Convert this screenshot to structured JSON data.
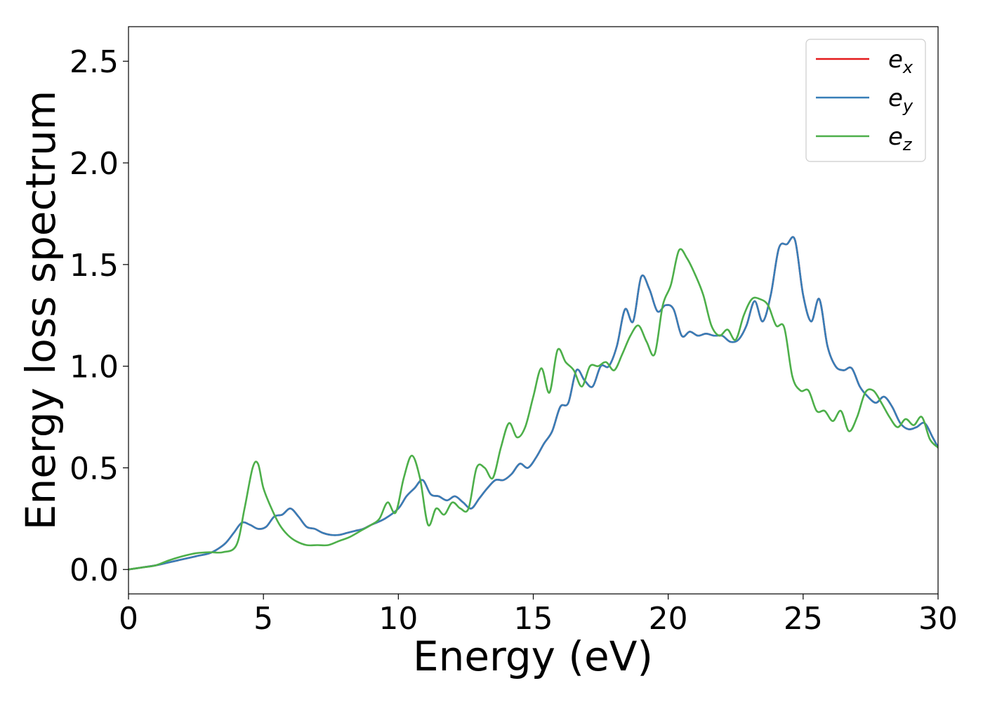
{
  "chart_data": {
    "type": "line",
    "xlabel": "Energy (eV)",
    "ylabel": "Energy loss spectrum",
    "xlim": [
      0,
      30
    ],
    "ylim": [
      -0.12,
      2.67
    ],
    "xticks": [
      0,
      5,
      10,
      15,
      20,
      25,
      30
    ],
    "xtick_labels": [
      "0",
      "5",
      "10",
      "15",
      "20",
      "25",
      "30"
    ],
    "yticks": [
      0.0,
      0.5,
      1.0,
      1.5,
      2.0,
      2.5
    ],
    "ytick_labels": [
      "0.0",
      "0.5",
      "1.0",
      "1.5",
      "2.0",
      "2.5"
    ],
    "grid": false,
    "legend_position": "top-right",
    "series": [
      {
        "name": "e",
        "subscript": "x",
        "color": "#e41a1c",
        "x": [
          0,
          0.5,
          1.0,
          1.5,
          2.0,
          2.5,
          3.0,
          3.3,
          3.6,
          3.9,
          4.2,
          4.5,
          4.8,
          5.1,
          5.4,
          5.7,
          6.0,
          6.3,
          6.6,
          6.9,
          7.2,
          7.5,
          7.8,
          8.1,
          8.4,
          8.7,
          9.0,
          9.5,
          10.0,
          10.3,
          10.6,
          10.9,
          11.2,
          11.5,
          11.8,
          12.1,
          12.4,
          12.7,
          13.0,
          13.3,
          13.6,
          13.9,
          14.2,
          14.5,
          14.8,
          15.1,
          15.4,
          15.7,
          16.0,
          16.3,
          16.6,
          16.9,
          17.2,
          17.5,
          17.8,
          18.1,
          18.4,
          18.7,
          19.0,
          19.3,
          19.6,
          19.9,
          20.2,
          20.5,
          20.8,
          21.1,
          21.4,
          21.7,
          22.0,
          22.3,
          22.6,
          22.9,
          23.2,
          23.5,
          23.8,
          24.1,
          24.4,
          24.7,
          25.0,
          25.3,
          25.6,
          25.9,
          26.2,
          26.5,
          26.8,
          27.1,
          27.4,
          27.7,
          28.0,
          28.3,
          28.6,
          28.9,
          29.2,
          29.5,
          29.8,
          30.0
        ],
        "y": [
          0,
          0.01,
          0.02,
          0.035,
          0.05,
          0.065,
          0.08,
          0.1,
          0.13,
          0.18,
          0.23,
          0.22,
          0.2,
          0.21,
          0.26,
          0.27,
          0.3,
          0.26,
          0.21,
          0.2,
          0.18,
          0.17,
          0.17,
          0.18,
          0.19,
          0.2,
          0.22,
          0.25,
          0.3,
          0.36,
          0.4,
          0.44,
          0.37,
          0.36,
          0.34,
          0.36,
          0.33,
          0.3,
          0.35,
          0.4,
          0.44,
          0.44,
          0.47,
          0.52,
          0.5,
          0.55,
          0.62,
          0.68,
          0.8,
          0.82,
          0.98,
          0.93,
          0.9,
          1.0,
          1.0,
          1.1,
          1.28,
          1.22,
          1.44,
          1.38,
          1.27,
          1.3,
          1.28,
          1.15,
          1.17,
          1.15,
          1.16,
          1.15,
          1.15,
          1.12,
          1.13,
          1.2,
          1.32,
          1.22,
          1.35,
          1.58,
          1.6,
          1.62,
          1.35,
          1.22,
          1.33,
          1.1,
          1.0,
          0.98,
          0.99,
          0.9,
          0.85,
          0.82,
          0.85,
          0.8,
          0.72,
          0.69,
          0.7,
          0.72,
          0.65,
          0.6
        ]
      },
      {
        "name": "e",
        "subscript": "y",
        "color": "#377eb8",
        "x": [
          0,
          0.5,
          1.0,
          1.5,
          2.0,
          2.5,
          3.0,
          3.3,
          3.6,
          3.9,
          4.2,
          4.5,
          4.8,
          5.1,
          5.4,
          5.7,
          6.0,
          6.3,
          6.6,
          6.9,
          7.2,
          7.5,
          7.8,
          8.1,
          8.4,
          8.7,
          9.0,
          9.5,
          10.0,
          10.3,
          10.6,
          10.9,
          11.2,
          11.5,
          11.8,
          12.1,
          12.4,
          12.7,
          13.0,
          13.3,
          13.6,
          13.9,
          14.2,
          14.5,
          14.8,
          15.1,
          15.4,
          15.7,
          16.0,
          16.3,
          16.6,
          16.9,
          17.2,
          17.5,
          17.8,
          18.1,
          18.4,
          18.7,
          19.0,
          19.3,
          19.6,
          19.9,
          20.2,
          20.5,
          20.8,
          21.1,
          21.4,
          21.7,
          22.0,
          22.3,
          22.6,
          22.9,
          23.2,
          23.5,
          23.8,
          24.1,
          24.4,
          24.7,
          25.0,
          25.3,
          25.6,
          25.9,
          26.2,
          26.5,
          26.8,
          27.1,
          27.4,
          27.7,
          28.0,
          28.3,
          28.6,
          28.9,
          29.2,
          29.5,
          29.8,
          30.0
        ],
        "y": [
          0,
          0.01,
          0.02,
          0.035,
          0.05,
          0.065,
          0.08,
          0.1,
          0.13,
          0.18,
          0.23,
          0.22,
          0.2,
          0.21,
          0.26,
          0.27,
          0.3,
          0.26,
          0.21,
          0.2,
          0.18,
          0.17,
          0.17,
          0.18,
          0.19,
          0.2,
          0.22,
          0.25,
          0.3,
          0.36,
          0.4,
          0.44,
          0.37,
          0.36,
          0.34,
          0.36,
          0.33,
          0.3,
          0.35,
          0.4,
          0.44,
          0.44,
          0.47,
          0.52,
          0.5,
          0.55,
          0.62,
          0.68,
          0.8,
          0.82,
          0.98,
          0.93,
          0.9,
          1.0,
          1.0,
          1.1,
          1.28,
          1.22,
          1.44,
          1.38,
          1.27,
          1.3,
          1.28,
          1.15,
          1.17,
          1.15,
          1.16,
          1.15,
          1.15,
          1.12,
          1.13,
          1.2,
          1.32,
          1.22,
          1.35,
          1.58,
          1.6,
          1.62,
          1.35,
          1.22,
          1.33,
          1.1,
          1.0,
          0.98,
          0.99,
          0.9,
          0.85,
          0.82,
          0.85,
          0.8,
          0.72,
          0.69,
          0.7,
          0.72,
          0.65,
          0.6
        ]
      },
      {
        "name": "e",
        "subscript": "z",
        "color": "#4daf4a",
        "x": [
          0,
          0.5,
          1.0,
          1.5,
          2.0,
          2.5,
          3.0,
          3.5,
          4.0,
          4.3,
          4.6,
          4.8,
          5.0,
          5.3,
          5.6,
          5.9,
          6.2,
          6.6,
          7.0,
          7.4,
          7.8,
          8.2,
          8.6,
          9.0,
          9.3,
          9.6,
          9.9,
          10.2,
          10.5,
          10.8,
          11.1,
          11.4,
          11.7,
          12.0,
          12.3,
          12.6,
          12.9,
          13.2,
          13.5,
          13.8,
          14.1,
          14.4,
          14.7,
          15.0,
          15.3,
          15.6,
          15.9,
          16.2,
          16.5,
          16.8,
          17.1,
          17.4,
          17.7,
          18.0,
          18.3,
          18.6,
          18.9,
          19.2,
          19.5,
          19.8,
          20.1,
          20.4,
          20.7,
          21.0,
          21.3,
          21.6,
          21.9,
          22.2,
          22.5,
          22.8,
          23.1,
          23.4,
          23.7,
          24.0,
          24.3,
          24.6,
          24.9,
          25.2,
          25.5,
          25.8,
          26.1,
          26.4,
          26.7,
          27.0,
          27.3,
          27.6,
          27.9,
          28.2,
          28.5,
          28.8,
          29.1,
          29.4,
          29.7,
          30.0
        ],
        "y": [
          0,
          0.01,
          0.02,
          0.045,
          0.065,
          0.08,
          0.085,
          0.085,
          0.12,
          0.3,
          0.5,
          0.52,
          0.4,
          0.3,
          0.22,
          0.17,
          0.14,
          0.12,
          0.12,
          0.12,
          0.14,
          0.16,
          0.19,
          0.22,
          0.25,
          0.33,
          0.28,
          0.45,
          0.56,
          0.45,
          0.22,
          0.3,
          0.27,
          0.33,
          0.3,
          0.3,
          0.5,
          0.5,
          0.45,
          0.6,
          0.72,
          0.65,
          0.7,
          0.85,
          0.99,
          0.87,
          1.08,
          1.02,
          0.98,
          0.9,
          1.0,
          1.0,
          1.02,
          0.98,
          1.06,
          1.15,
          1.2,
          1.12,
          1.06,
          1.3,
          1.4,
          1.57,
          1.53,
          1.45,
          1.35,
          1.2,
          1.15,
          1.18,
          1.13,
          1.25,
          1.33,
          1.33,
          1.3,
          1.2,
          1.19,
          0.95,
          0.88,
          0.88,
          0.78,
          0.78,
          0.73,
          0.78,
          0.68,
          0.75,
          0.87,
          0.88,
          0.82,
          0.75,
          0.7,
          0.74,
          0.71,
          0.75,
          0.64,
          0.6
        ]
      }
    ]
  }
}
